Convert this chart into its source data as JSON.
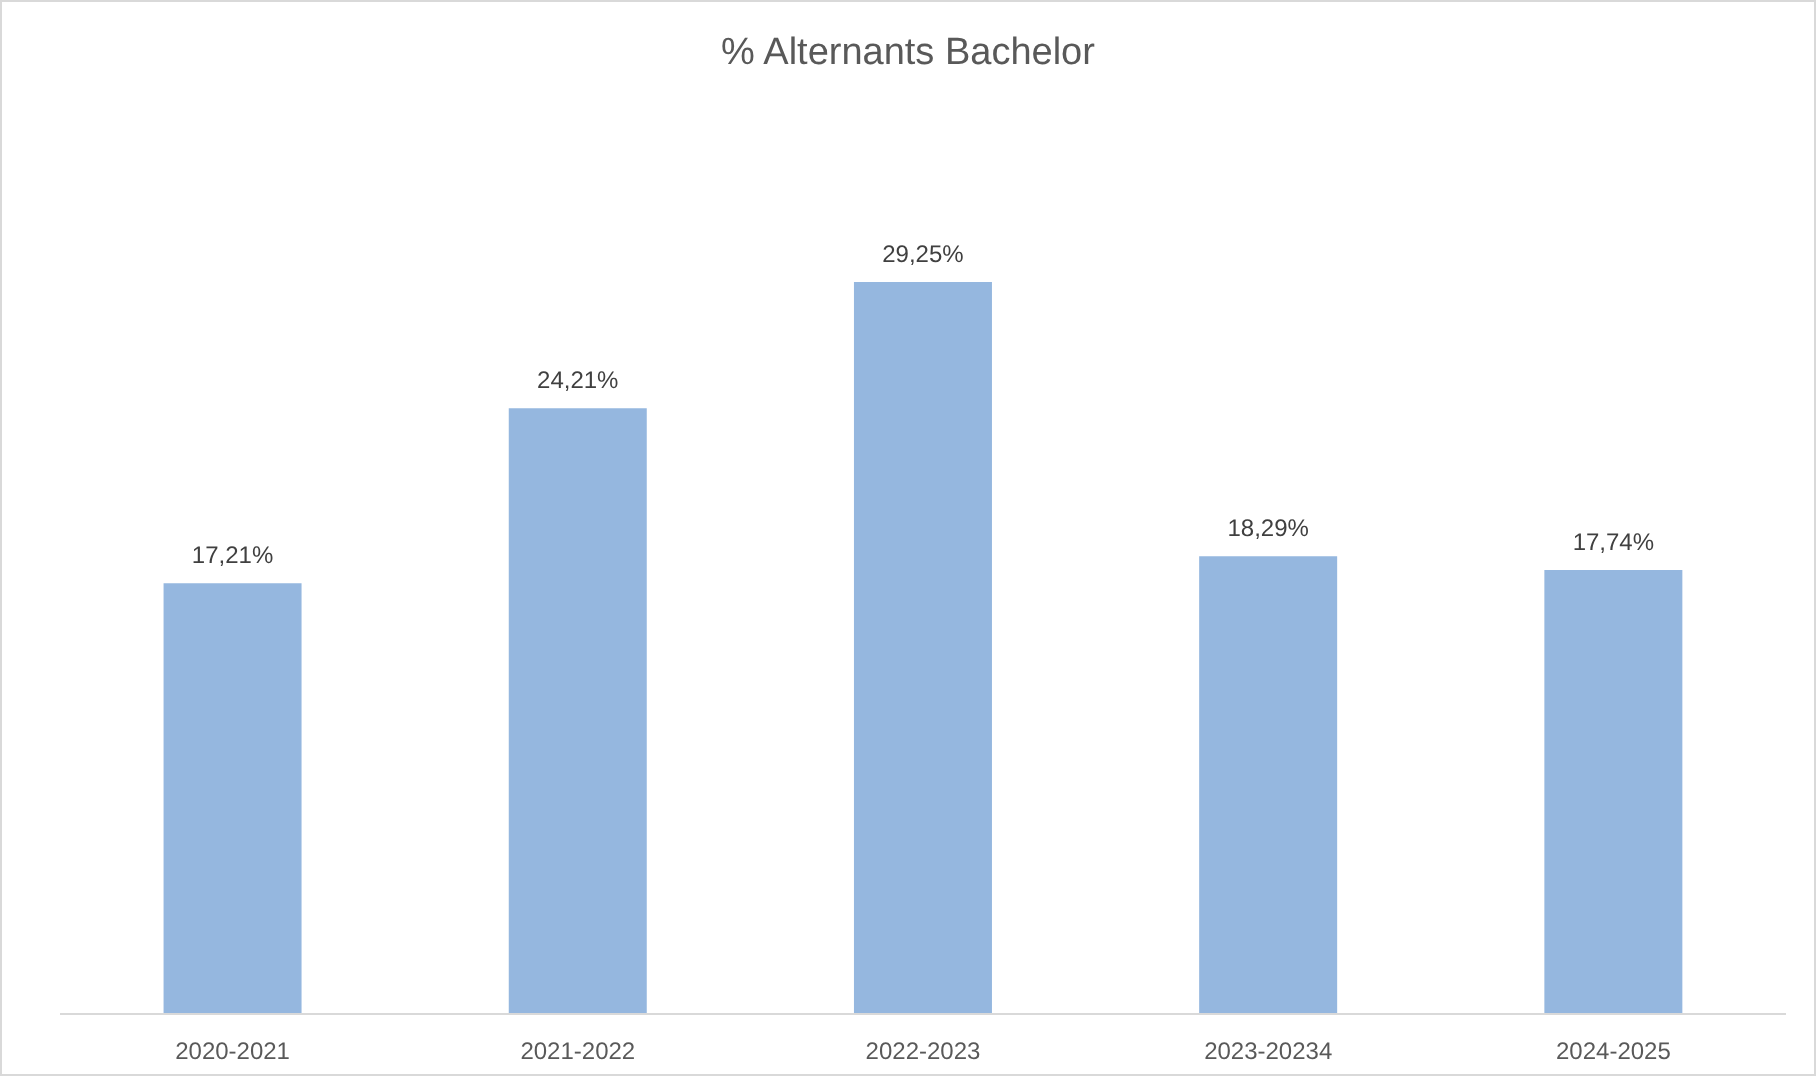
{
  "chart_data": {
    "type": "bar",
    "title": "% Alternants Bachelor",
    "categories": [
      "2020-2021",
      "2021-2022",
      "2022-2023",
      "2023-20234",
      "2024-2025"
    ],
    "values": [
      17.21,
      24.21,
      29.25,
      18.29,
      17.74
    ],
    "value_labels": [
      "17,21%",
      "24,21%",
      "29,25%",
      "18,29%",
      "17,74%"
    ],
    "color": "#95b7df",
    "tick_labels": "x"
  }
}
